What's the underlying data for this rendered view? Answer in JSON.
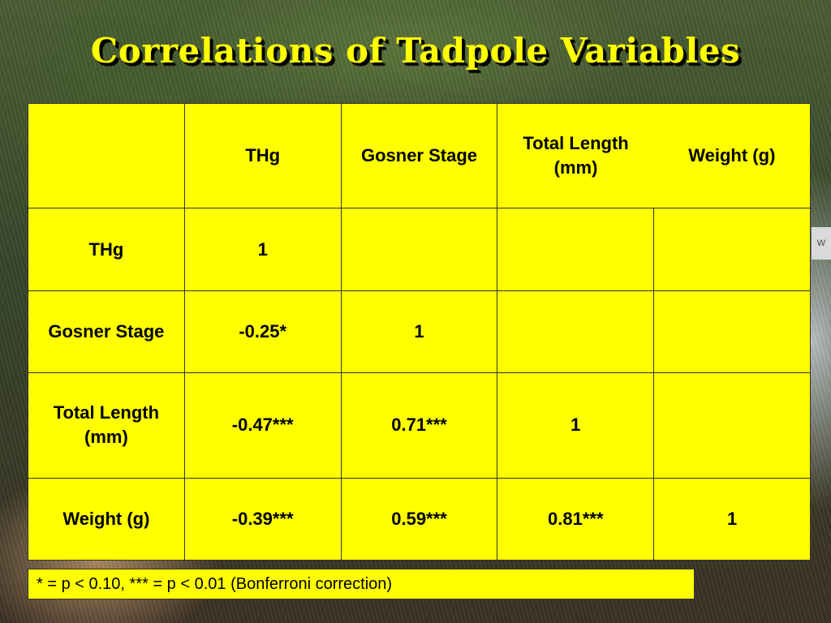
{
  "slide": {
    "title": "Correlations of Tadpole Variables",
    "footnote": "* = p < 0.10, *** = p < 0.01 (Bonferroni correction)",
    "background_edge_text": "W",
    "colors": {
      "accent": "#ffff00",
      "title_shadow": "#000000"
    }
  },
  "table": {
    "corner": "",
    "columns": [
      "THg",
      "Gosner Stage",
      "Total Length (mm)",
      "Weight (g)"
    ],
    "rows": [
      {
        "label": "THg",
        "cells": [
          "1",
          "",
          "",
          ""
        ]
      },
      {
        "label": "Gosner Stage",
        "cells": [
          "-0.25*",
          "1",
          "",
          ""
        ]
      },
      {
        "label": "Total Length (mm)",
        "cells": [
          "-0.47***",
          "0.71***",
          "1",
          ""
        ]
      },
      {
        "label": "Weight (g)",
        "cells": [
          "-0.39***",
          "0.59***",
          "0.81***",
          "1"
        ]
      }
    ]
  }
}
